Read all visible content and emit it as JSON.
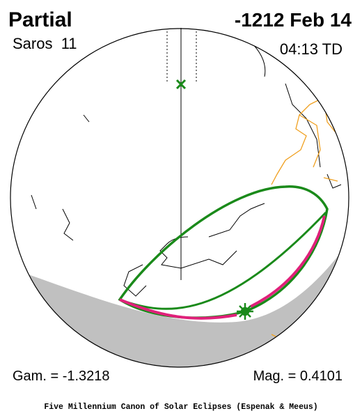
{
  "header": {
    "title": "Partial",
    "date": "-1212 Feb 14",
    "saros": "Saros  11",
    "time": "04:13 TD"
  },
  "footer": {
    "gamma": "Gam. = -1.3218",
    "magnitude": "Mag. = 0.4101",
    "credit": "Five Millennium Canon of Solar Eclipses (Espenak & Meeus)"
  }
}
